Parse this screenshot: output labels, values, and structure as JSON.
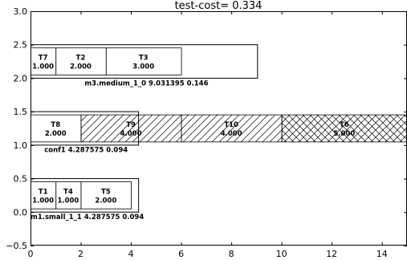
{
  "chart_data": {
    "type": "gantt",
    "title": "test-cost= 0.334",
    "xlim": [
      0,
      15
    ],
    "ylim": [
      -0.5,
      3.0
    ],
    "x_ticks": [
      0,
      2,
      4,
      6,
      8,
      10,
      12,
      14
    ],
    "y_ticks": [
      -0.5,
      0.0,
      0.5,
      1.0,
      1.5,
      2.0,
      2.5,
      3.0
    ],
    "x_tick_labels": [
      "0",
      "2",
      "4",
      "6",
      "8",
      "10",
      "12",
      "14"
    ],
    "y_tick_labels": [
      "−0.5",
      "0.0",
      "0.5",
      "1.0",
      "1.5",
      "2.0",
      "2.5",
      "3.0"
    ],
    "grid": false,
    "groups": [
      {
        "label": "m3.medium_1_0 9.031395 0.146",
        "x0": 0,
        "x1": 9.03,
        "y0": 2.0,
        "y1": 2.5,
        "label_x": 2.15,
        "label_y": 1.93,
        "label_anchor": "start",
        "tasks": [
          {
            "name": "T7",
            "value": "1.000",
            "start": 0,
            "end": 1,
            "hatch": "none"
          },
          {
            "name": "T2",
            "value": "2.000",
            "start": 1,
            "end": 3,
            "hatch": "none"
          },
          {
            "name": "T3",
            "value": "3.000",
            "start": 3,
            "end": 6,
            "hatch": "none"
          }
        ]
      },
      {
        "label": "conf1 4.287575 0.094",
        "x0": 0,
        "x1": 4.29,
        "y0": 1.0,
        "y1": 1.5,
        "label_x": 0.55,
        "label_y": 0.93,
        "label_anchor": "start",
        "tasks": [
          {
            "name": "T8",
            "value": "2.000",
            "start": 0,
            "end": 2,
            "hatch": "none"
          },
          {
            "name": "T9",
            "value": "4.000",
            "start": 2,
            "end": 6,
            "hatch": "diag"
          },
          {
            "name": "T10",
            "value": "4.000",
            "start": 6,
            "end": 10,
            "hatch": "diag"
          },
          {
            "name": "T6",
            "value": "5.000",
            "start": 10,
            "end": 15,
            "hatch": "cross"
          }
        ]
      },
      {
        "label": "m1.small_1_1 4.287575 0.094",
        "x0": 0,
        "x1": 4.29,
        "y0": 0.0,
        "y1": 0.5,
        "label_x": 0.0,
        "label_y": -0.07,
        "label_anchor": "start",
        "tasks": [
          {
            "name": "T1",
            "value": "1.000",
            "start": 0,
            "end": 1,
            "hatch": "none"
          },
          {
            "name": "T4",
            "value": "1.000",
            "start": 1,
            "end": 2,
            "hatch": "none"
          },
          {
            "name": "T5",
            "value": "2.000",
            "start": 2,
            "end": 4,
            "hatch": "none"
          }
        ]
      }
    ]
  }
}
